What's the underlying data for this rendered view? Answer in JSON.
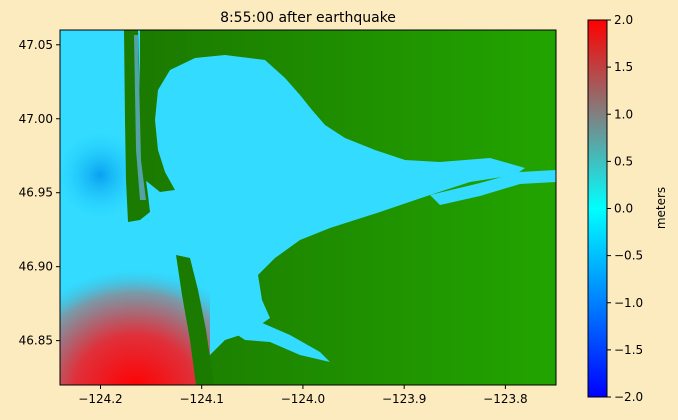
{
  "chart_data": {
    "type": "heatmap",
    "title": "8:55:00 after earthquake",
    "xlabel": "",
    "ylabel": "",
    "xlim": [
      -124.24,
      -123.75
    ],
    "ylim": [
      46.82,
      47.06
    ],
    "x_ticks": [
      {
        "value": -124.2,
        "label": "−124.2"
      },
      {
        "value": -124.1,
        "label": "−124.1"
      },
      {
        "value": -124.0,
        "label": "−124.0"
      },
      {
        "value": -123.9,
        "label": "−123.9"
      },
      {
        "value": -123.8,
        "label": "−123.8"
      }
    ],
    "y_ticks": [
      {
        "value": 46.85,
        "label": "46.85"
      },
      {
        "value": 46.9,
        "label": "46.90"
      },
      {
        "value": 46.95,
        "label": "46.95"
      },
      {
        "value": 47.0,
        "label": "47.00"
      },
      {
        "value": 47.05,
        "label": "47.05"
      }
    ],
    "colorbar": {
      "label": "meters",
      "range": [
        -2.0,
        2.0
      ],
      "ticks": [
        {
          "value": 2.0,
          "label": "2.0"
        },
        {
          "value": 1.5,
          "label": "1.5"
        },
        {
          "value": 1.0,
          "label": "1.0"
        },
        {
          "value": 0.5,
          "label": "0.5"
        },
        {
          "value": 0.0,
          "label": "0.0"
        },
        {
          "value": -0.5,
          "label": "−0.5"
        },
        {
          "value": -1.0,
          "label": "−1.0"
        },
        {
          "value": -1.5,
          "label": "−1.5"
        },
        {
          "value": -2.0,
          "label": "−2.0"
        }
      ],
      "colors": [
        "#0000ff",
        "#00ffff",
        "#808080",
        "#ff0000"
      ]
    },
    "land_color": "#1f7a00",
    "background_color": "#fdebc0"
  }
}
